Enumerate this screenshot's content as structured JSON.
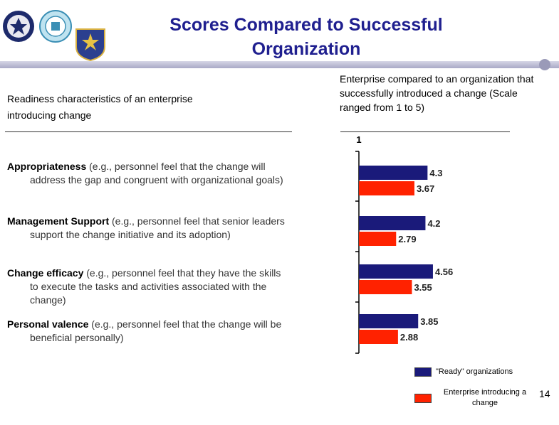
{
  "header": {
    "title_line1": "Scores Compared to Successful",
    "title_line2": "Organization"
  },
  "logos": [
    "va-seal-icon",
    "education-seal-icon",
    "air-force-shield-icon"
  ],
  "columns": {
    "left_heading": "Readiness characteristics of an enterprise introducing change",
    "right_heading": "Enterprise compared to an organization that successfully introduced a change (Scale ranged from 1 to 5)"
  },
  "rows": [
    {
      "bold": "Appropriateness",
      "rest1": " (e.g., personnel feel that the change will",
      "rest2": "address the gap and congruent with organizational goals)",
      "rest3": ""
    },
    {
      "bold": "Management Support",
      "rest1": " (e.g., personnel feel that senior leaders",
      "rest2": "support the change initiative and its adoption)",
      "rest3": ""
    },
    {
      "bold": "Change efficacy",
      "rest1": " (e.g., personnel feel that they have the skills",
      "rest2": "to execute the tasks and activities associated with the",
      "rest3": "change)"
    },
    {
      "bold": "Personal valence",
      "rest1": " (e.g., personnel feel that the change will be",
      "rest2": "beneficial personally)",
      "rest3": ""
    }
  ],
  "chart_data": {
    "type": "bar",
    "orientation": "horizontal",
    "categories": [
      "Appropriateness",
      "Management Support",
      "Change efficacy",
      "Personal valence"
    ],
    "series": [
      {
        "name": "\"Ready\" organizations",
        "color": "#1a1a7a",
        "values": [
          4.3,
          4.2,
          4.56,
          3.85
        ]
      },
      {
        "name": "Enterprise introducing a change",
        "color": "#ff2200",
        "values": [
          3.67,
          2.79,
          3.55,
          2.88
        ]
      }
    ],
    "value_labels": [
      [
        "4.3",
        "4.2",
        "4.56",
        "3.85"
      ],
      [
        "3.67",
        "2.79",
        "3.55",
        "2.88"
      ]
    ],
    "axis_min_label": "1",
    "xlim": [
      1,
      5
    ],
    "legend_position": "bottom-right"
  },
  "legend": {
    "ready_label": "\"Ready\" organizations",
    "enterprise_label_line1": "Enterprise introducing a",
    "enterprise_label_line2": "change"
  },
  "footer": {
    "page_number": "14"
  }
}
